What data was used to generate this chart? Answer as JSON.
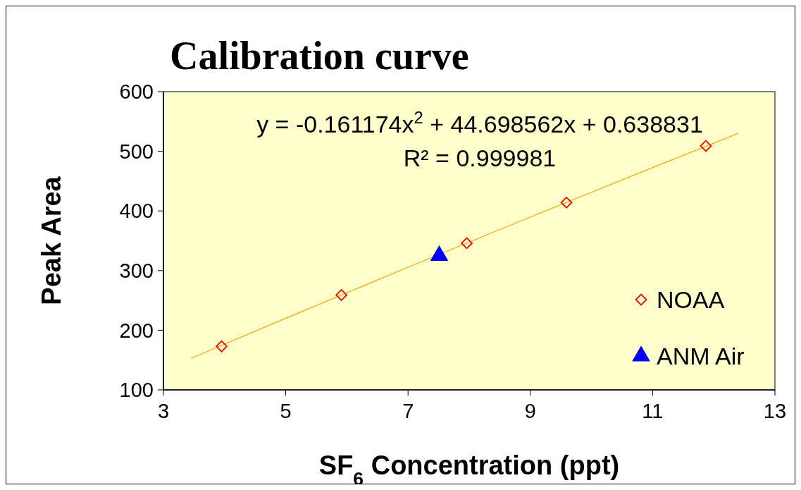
{
  "chart_data": {
    "type": "scatter",
    "title": "Calibration curve",
    "xlabel": "SF$_{6}$ Concentration (ppt)",
    "ylabel": "Peak Area",
    "xlim": [
      3,
      13
    ],
    "xticks": [
      3,
      5,
      7,
      9,
      11,
      13
    ],
    "ylim": [
      100,
      600
    ],
    "yticks": [
      100,
      200,
      300,
      400,
      500,
      600
    ],
    "grid": false,
    "legend": "bottom right",
    "annotations": [
      "y = -0.161174x$^{2}$ + 44.698562x + 0.638831",
      "R² = 0.999981"
    ],
    "series": [
      {
        "type": "line",
        "color": "#ffa500",
        "marker": "none",
        "x": [
          3.45,
          5,
          7,
          9,
          11,
          12.4
        ],
        "values": [
          152.9,
          220.1,
          305.6,
          389.9,
          472.8,
          530.1
        ]
      },
      {
        "name": "NOAA",
        "color": "#ff0000",
        "marker": "diamond",
        "x": [
          3.95,
          5.91,
          7.96,
          9.59,
          11.87
        ],
        "values": [
          173,
          259,
          346,
          414,
          509
        ]
      },
      {
        "name": "ANM Air",
        "color": "#0000ff",
        "marker": "triangle",
        "x": [
          7.51
        ],
        "values": [
          325
        ]
      }
    ]
  }
}
